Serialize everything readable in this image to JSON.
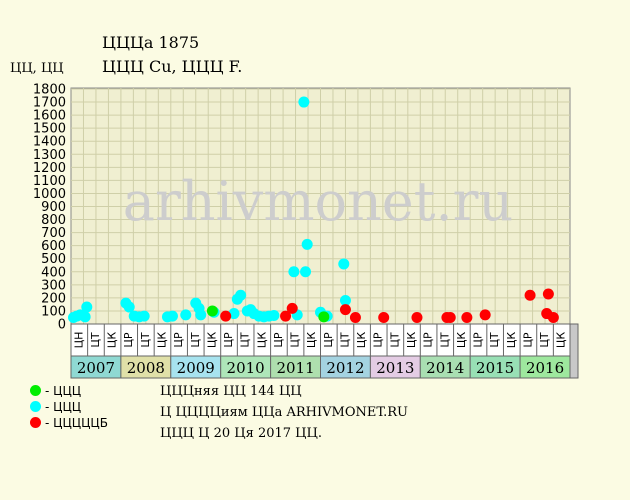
{
  "header": {
    "title": "ЦЦЦа 1875",
    "subtitle": "ЦЦЦ Cu, ЦЦЦ F.",
    "y_unit": "ЦЦ, ЦЦ"
  },
  "watermark": "arhivmonet.ru",
  "legend": [
    {
      "label": "- ЦЦЦ",
      "color": "#00ee00"
    },
    {
      "label": "- ЦЦЦ",
      "color": "#00ffff"
    },
    {
      "label": "- ЦЦЦЦЦБ",
      "color": "#ff0000"
    }
  ],
  "info": [
    "ЦЦЦняя ЦЦ 144 ЦЦ",
    "Ц ЦЦЦЦиям ЦЦа ARHIVMONET.RU",
    "ЦЦЦ Ц 20 Ця 2017 ЦЦ."
  ],
  "chart_data": {
    "type": "scatter",
    "ylim": [
      0,
      1800
    ],
    "yticks": [
      0,
      100,
      200,
      300,
      400,
      500,
      600,
      700,
      800,
      900,
      1000,
      1100,
      1200,
      1300,
      1400,
      1500,
      1600,
      1700,
      1800
    ],
    "x_sublabels": [
      "ЦН",
      "ЦТ",
      "ЦК",
      "ЦР",
      "ЦТ",
      "ЦК",
      "ЦР",
      "ЦТ",
      "ЦК",
      "ЦР",
      "ЦТ",
      "ЦК",
      "ЦР",
      "ЦТ",
      "ЦК",
      "ЦР",
      "ЦТ",
      "ЦК",
      "ЦР",
      "ЦТ",
      "ЦК",
      "ЦР",
      "ЦТ",
      "ЦК",
      "ЦР",
      "ЦТ",
      "ЦК",
      "ЦР",
      "ЦТ",
      "ЦК"
    ],
    "years": [
      {
        "label": "2007",
        "color": "#8fd9d3"
      },
      {
        "label": "2008",
        "color": "#e0e0a8"
      },
      {
        "label": "2009",
        "color": "#a7e3ef"
      },
      {
        "label": "2010",
        "color": "#aee6b9"
      },
      {
        "label": "2011",
        "color": "#aedfae"
      },
      {
        "label": "2012",
        "color": "#a4d3e1"
      },
      {
        "label": "2013",
        "color": "#e4cce4"
      },
      {
        "label": "2014",
        "color": "#a9dfb2"
      },
      {
        "label": "2015",
        "color": "#98e0b5"
      },
      {
        "label": "2016",
        "color": "#9ee89e"
      }
    ],
    "series": [
      {
        "color": "#00ffff",
        "points": [
          [
            0.15,
            50
          ],
          [
            0.35,
            60
          ],
          [
            0.55,
            70
          ],
          [
            0.85,
            55
          ],
          [
            0.95,
            130
          ],
          [
            3.3,
            160
          ],
          [
            3.5,
            130
          ],
          [
            3.8,
            60
          ],
          [
            4.1,
            55
          ],
          [
            4.4,
            60
          ],
          [
            5.8,
            55
          ],
          [
            6.1,
            60
          ],
          [
            6.9,
            70
          ],
          [
            7.5,
            160
          ],
          [
            7.7,
            120
          ],
          [
            7.8,
            70
          ],
          [
            8.6,
            90
          ],
          [
            9.8,
            80
          ],
          [
            10.0,
            190
          ],
          [
            10.2,
            220
          ],
          [
            10.6,
            100
          ],
          [
            10.8,
            110
          ],
          [
            11.0,
            80
          ],
          [
            11.3,
            60
          ],
          [
            11.6,
            55
          ],
          [
            11.9,
            60
          ],
          [
            12.2,
            65
          ],
          [
            13.4,
            400
          ],
          [
            13.6,
            70
          ],
          [
            14.0,
            1700
          ],
          [
            14.1,
            400
          ],
          [
            14.2,
            610
          ],
          [
            15.0,
            90
          ],
          [
            15.4,
            60
          ],
          [
            16.4,
            460
          ],
          [
            16.5,
            180
          ]
        ]
      },
      {
        "color": "#00ee00",
        "points": [
          [
            8.5,
            100
          ],
          [
            15.2,
            55
          ]
        ]
      },
      {
        "color": "#ff0000",
        "points": [
          [
            9.3,
            60
          ],
          [
            12.9,
            60
          ],
          [
            13.3,
            120
          ],
          [
            16.5,
            110
          ],
          [
            17.1,
            50
          ],
          [
            18.8,
            50
          ],
          [
            20.8,
            50
          ],
          [
            22.6,
            50
          ],
          [
            22.8,
            50
          ],
          [
            23.8,
            50
          ],
          [
            24.9,
            70
          ],
          [
            27.6,
            220
          ],
          [
            28.6,
            80
          ],
          [
            28.7,
            230
          ],
          [
            29.0,
            50
          ]
        ]
      }
    ]
  }
}
